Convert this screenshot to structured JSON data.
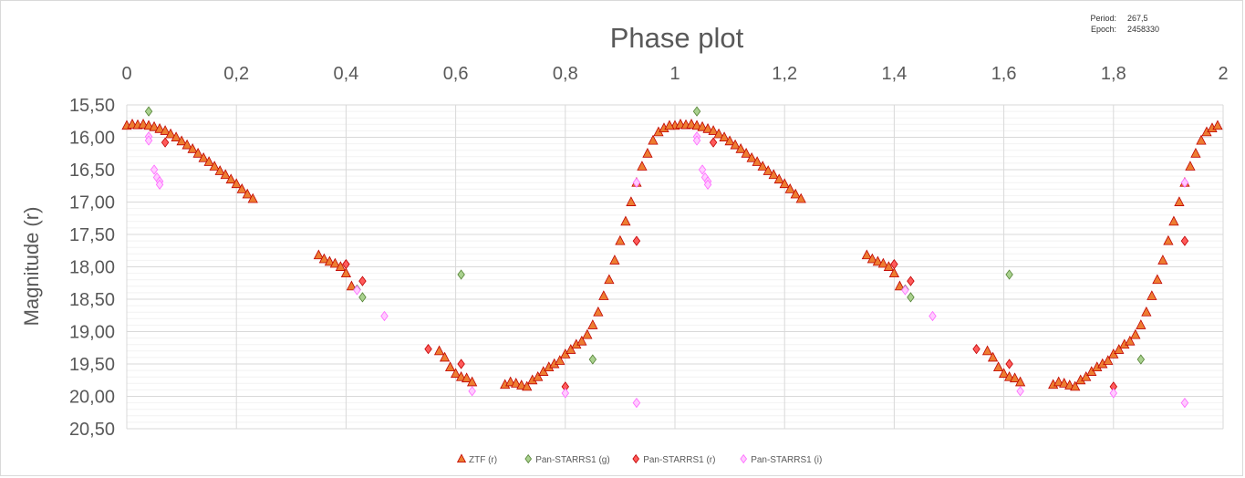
{
  "chart_data": {
    "type": "scatter",
    "title": "Phase plot",
    "xlabel": "",
    "ylabel": "Magnitude (r)",
    "xlim": [
      0,
      2
    ],
    "ylim": [
      15.5,
      20.5
    ],
    "y_reversed": true,
    "x_axis_position": "top",
    "x_ticks": [
      "0",
      "0,2",
      "0,4",
      "0,6",
      "0,8",
      "1",
      "1,2",
      "1,4",
      "1,6",
      "1,8",
      "2"
    ],
    "y_ticks": [
      "15,50",
      "16,00",
      "16,50",
      "17,00",
      "17,50",
      "18,00",
      "18,50",
      "19,00",
      "19,50",
      "20,00",
      "20,50"
    ],
    "grid": true,
    "legend_position": "bottom",
    "annotations": {
      "period_label": "Period:",
      "period_value": "267,5",
      "epoch_label": "Epoch:",
      "epoch_value": "2458330"
    },
    "series": [
      {
        "name": "ZTF (r)",
        "marker": "triangle",
        "color": "#ed7d31",
        "edge": "#c00000",
        "x": [
          0.0,
          0.01,
          0.02,
          0.03,
          0.04,
          0.05,
          0.06,
          0.07,
          0.08,
          0.09,
          0.1,
          0.11,
          0.12,
          0.13,
          0.14,
          0.15,
          0.16,
          0.17,
          0.18,
          0.19,
          0.2,
          0.21,
          0.22,
          0.23,
          0.35,
          0.36,
          0.37,
          0.38,
          0.39,
          0.4,
          0.41,
          0.57,
          0.58,
          0.59,
          0.6,
          0.61,
          0.62,
          0.63,
          0.69,
          0.7,
          0.71,
          0.72,
          0.73,
          0.74,
          0.75,
          0.76,
          0.77,
          0.78,
          0.79,
          0.8,
          0.81,
          0.82,
          0.83,
          0.84,
          0.85,
          0.86,
          0.87,
          0.88,
          0.89,
          0.9,
          0.91,
          0.92,
          0.93,
          0.94,
          0.95,
          0.96,
          0.97,
          0.98,
          0.99
        ],
        "y": [
          15.82,
          15.8,
          15.81,
          15.8,
          15.82,
          15.84,
          15.87,
          15.9,
          15.95,
          16.0,
          16.06,
          16.12,
          16.18,
          16.25,
          16.32,
          16.38,
          16.45,
          16.52,
          16.58,
          16.65,
          16.72,
          16.8,
          16.88,
          16.95,
          17.82,
          17.88,
          17.92,
          17.95,
          18.0,
          18.1,
          18.3,
          19.3,
          19.4,
          19.55,
          19.65,
          19.7,
          19.72,
          19.78,
          19.82,
          19.78,
          19.8,
          19.83,
          19.85,
          19.75,
          19.7,
          19.62,
          19.55,
          19.5,
          19.45,
          19.35,
          19.28,
          19.2,
          19.15,
          19.05,
          18.9,
          18.7,
          18.45,
          18.2,
          17.9,
          17.6,
          17.3,
          17.0,
          16.7,
          16.45,
          16.25,
          16.05,
          15.92,
          15.86,
          15.82
        ]
      },
      {
        "name": "Pan-STARRS1 (g)",
        "marker": "diamond",
        "color": "#a9d18e",
        "edge": "#548235",
        "x": [
          0.04,
          0.61,
          0.42,
          0.43,
          0.85
        ],
        "y": [
          15.6,
          18.12,
          18.35,
          18.47,
          19.43
        ]
      },
      {
        "name": "Pan-STARRS1 (r)",
        "marker": "diamond",
        "color": "#ff5b5b",
        "edge": "#c00000",
        "x": [
          0.07,
          0.4,
          0.43,
          0.55,
          0.61,
          0.8,
          0.93
        ],
        "y": [
          16.08,
          17.96,
          18.22,
          19.27,
          19.5,
          19.85,
          17.6
        ]
      },
      {
        "name": "Pan-STARRS1 (i)",
        "marker": "diamond",
        "color": "#ffccff",
        "edge": "#ff66ff",
        "x": [
          0.04,
          0.04,
          0.05,
          0.055,
          0.06,
          0.06,
          0.42,
          0.47,
          0.63,
          0.8,
          0.93,
          0.93
        ],
        "y": [
          15.99,
          16.05,
          16.5,
          16.62,
          16.68,
          16.73,
          18.36,
          18.76,
          19.92,
          19.95,
          16.7,
          20.1
        ]
      }
    ]
  }
}
